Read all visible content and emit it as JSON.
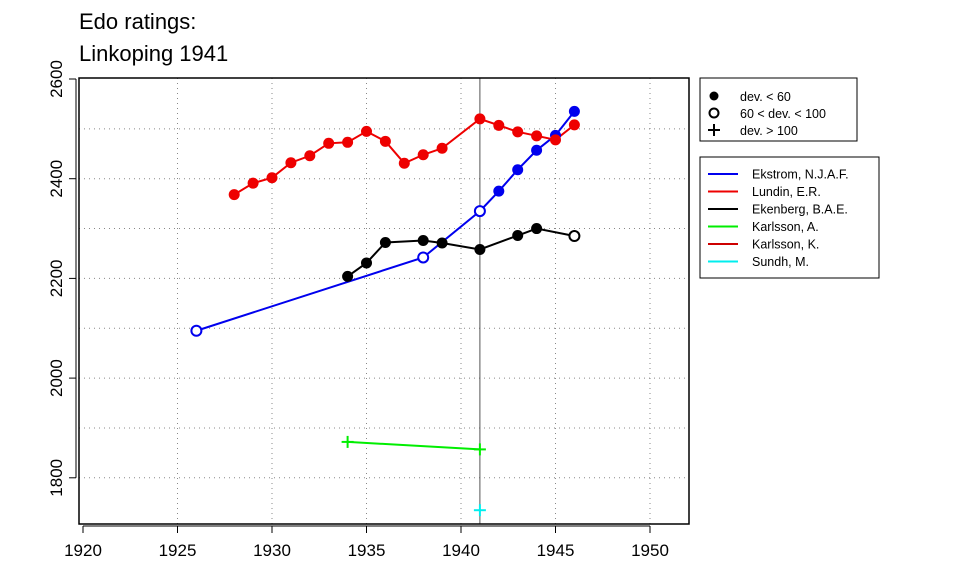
{
  "chart_data": {
    "type": "line",
    "title_lines": [
      "Edo ratings:",
      "Linkoping 1941"
    ],
    "xlabel": "",
    "ylabel": "",
    "xlim": [
      1919,
      1952
    ],
    "ylim": [
      1700,
      2610
    ],
    "x_ticks": [
      1920,
      1925,
      1930,
      1935,
      1940,
      1945,
      1950
    ],
    "y_ticks": [
      1800,
      2000,
      2200,
      2400,
      2600
    ],
    "grid": true,
    "grid_x": [
      1925,
      1930,
      1935,
      1940,
      1945,
      1950
    ],
    "grid_y": [
      1800,
      1900,
      2000,
      2100,
      2200,
      2300,
      2400,
      2500
    ],
    "reference_line_x": 1941,
    "marker_legend": {
      "placement": "top-right",
      "entries": [
        {
          "marker": "filled",
          "label": "dev. < 60"
        },
        {
          "marker": "open",
          "label": "60 < dev. < 100"
        },
        {
          "marker": "plus",
          "label": "dev. > 100"
        }
      ]
    },
    "series_legend_placement": "right",
    "series": [
      {
        "name": "Ekstrom, N.J.A.F.",
        "color": "#0000ee",
        "points": [
          {
            "x": 1926,
            "y": 2095,
            "m": "open"
          },
          {
            "x": 1938,
            "y": 2242,
            "m": "open"
          },
          {
            "x": 1941,
            "y": 2335,
            "m": "open"
          },
          {
            "x": 1942,
            "y": 2375,
            "m": "filled"
          },
          {
            "x": 1943,
            "y": 2418,
            "m": "filled"
          },
          {
            "x": 1944,
            "y": 2457,
            "m": "filled"
          },
          {
            "x": 1945,
            "y": 2487,
            "m": "filled"
          },
          {
            "x": 1946,
            "y": 2535,
            "m": "filled"
          }
        ]
      },
      {
        "name": "Lundin, E.R.",
        "color": "#ee0000",
        "points": [
          {
            "x": 1928,
            "y": 2368,
            "m": "filled"
          },
          {
            "x": 1929,
            "y": 2391,
            "m": "filled"
          },
          {
            "x": 1930,
            "y": 2402,
            "m": "filled"
          },
          {
            "x": 1931,
            "y": 2432,
            "m": "filled"
          },
          {
            "x": 1932,
            "y": 2446,
            "m": "filled"
          },
          {
            "x": 1933,
            "y": 2471,
            "m": "filled"
          },
          {
            "x": 1934,
            "y": 2473,
            "m": "filled"
          },
          {
            "x": 1935,
            "y": 2495,
            "m": "filled"
          },
          {
            "x": 1936,
            "y": 2475,
            "m": "filled"
          },
          {
            "x": 1937,
            "y": 2431,
            "m": "filled"
          },
          {
            "x": 1938,
            "y": 2448,
            "m": "filled"
          },
          {
            "x": 1939,
            "y": 2461,
            "m": "filled"
          },
          {
            "x": 1941,
            "y": 2520,
            "m": "filled"
          },
          {
            "x": 1942,
            "y": 2507,
            "m": "filled"
          },
          {
            "x": 1943,
            "y": 2494,
            "m": "filled"
          },
          {
            "x": 1944,
            "y": 2486,
            "m": "filled"
          },
          {
            "x": 1945,
            "y": 2478,
            "m": "filled"
          },
          {
            "x": 1946,
            "y": 2508,
            "m": "filled"
          }
        ]
      },
      {
        "name": "Ekenberg, B.A.E.",
        "color": "#000000",
        "points": [
          {
            "x": 1934,
            "y": 2204,
            "m": "filled"
          },
          {
            "x": 1935,
            "y": 2231,
            "m": "filled"
          },
          {
            "x": 1936,
            "y": 2272,
            "m": "filled"
          },
          {
            "x": 1938,
            "y": 2276,
            "m": "filled"
          },
          {
            "x": 1939,
            "y": 2271,
            "m": "filled"
          },
          {
            "x": 1941,
            "y": 2258,
            "m": "filled"
          },
          {
            "x": 1943,
            "y": 2286,
            "m": "filled"
          },
          {
            "x": 1944,
            "y": 2300,
            "m": "filled"
          },
          {
            "x": 1946,
            "y": 2285,
            "m": "open"
          }
        ]
      },
      {
        "name": "Karlsson, A.",
        "color": "#00ee00",
        "points": [
          {
            "x": 1934,
            "y": 1872,
            "m": "plus"
          },
          {
            "x": 1941,
            "y": 1857,
            "m": "plus"
          }
        ]
      },
      {
        "name": "Karlsson, K.",
        "color": "#cd0000",
        "points": []
      },
      {
        "name": "Sundh, M.",
        "color": "#00eeee",
        "points": [
          {
            "x": 1941,
            "y": 1735,
            "m": "plus"
          }
        ]
      }
    ]
  }
}
